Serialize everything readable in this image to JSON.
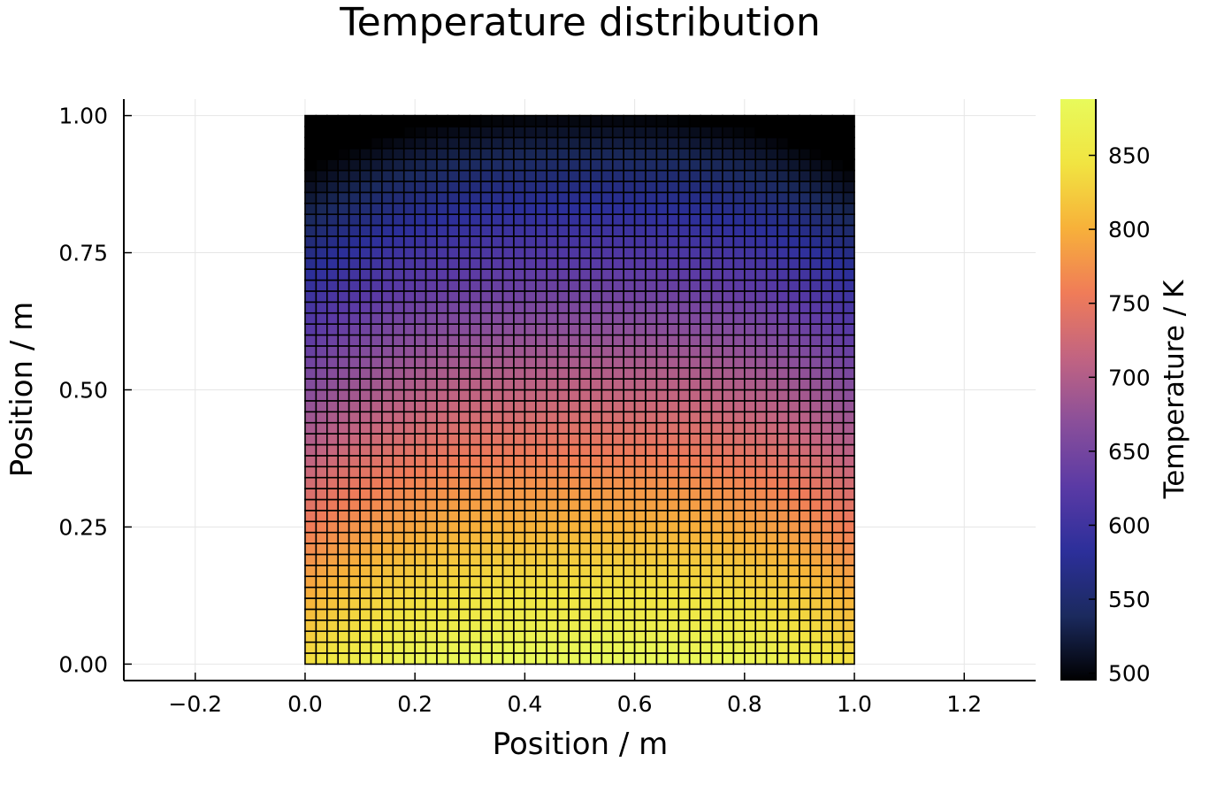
{
  "chart_data": {
    "type": "heatmap",
    "title": "Temperature distribution",
    "xlabel": "Position / m",
    "ylabel": "Position / m",
    "colorbar_label": "Temperature / K",
    "xlim": [
      -0.33,
      1.33
    ],
    "ylim": [
      -0.03,
      1.03
    ],
    "xticks": [
      -0.2,
      0.0,
      0.2,
      0.4,
      0.6,
      0.8,
      1.0,
      1.2
    ],
    "xtick_labels": [
      "−0.2",
      "0.0",
      "0.2",
      "0.4",
      "0.6",
      "0.8",
      "1.0",
      "1.2"
    ],
    "yticks": [
      0.0,
      0.25,
      0.5,
      0.75,
      1.0
    ],
    "ytick_labels": [
      "0.00",
      "0.25",
      "0.50",
      "0.75",
      "1.00"
    ],
    "colorbar_range": [
      495,
      888
    ],
    "colorbar_ticks": [
      500,
      550,
      600,
      650,
      700,
      750,
      800,
      850
    ],
    "colorbar_tick_labels": [
      "500",
      "550",
      "600",
      "650",
      "700",
      "750",
      "800",
      "850"
    ],
    "colormap": [
      "#000000",
      "#1b2a5e",
      "#2c2f9a",
      "#5a3aa5",
      "#8a4f9a",
      "#c26481",
      "#f07c58",
      "#f7b13a",
      "#f1e441",
      "#e8fa5b"
    ],
    "grid": true,
    "legend": "colorbar-right",
    "grid_extent": {
      "x": [
        0.0,
        1.0
      ],
      "y": [
        0.0,
        1.0
      ],
      "nx": 50,
      "ny": 50
    },
    "temperature_model": {
      "T_bottom": 888,
      "T_top": 495,
      "profile": "decreasing upward, slightly cooler near left/right edges and at the top corners"
    }
  }
}
